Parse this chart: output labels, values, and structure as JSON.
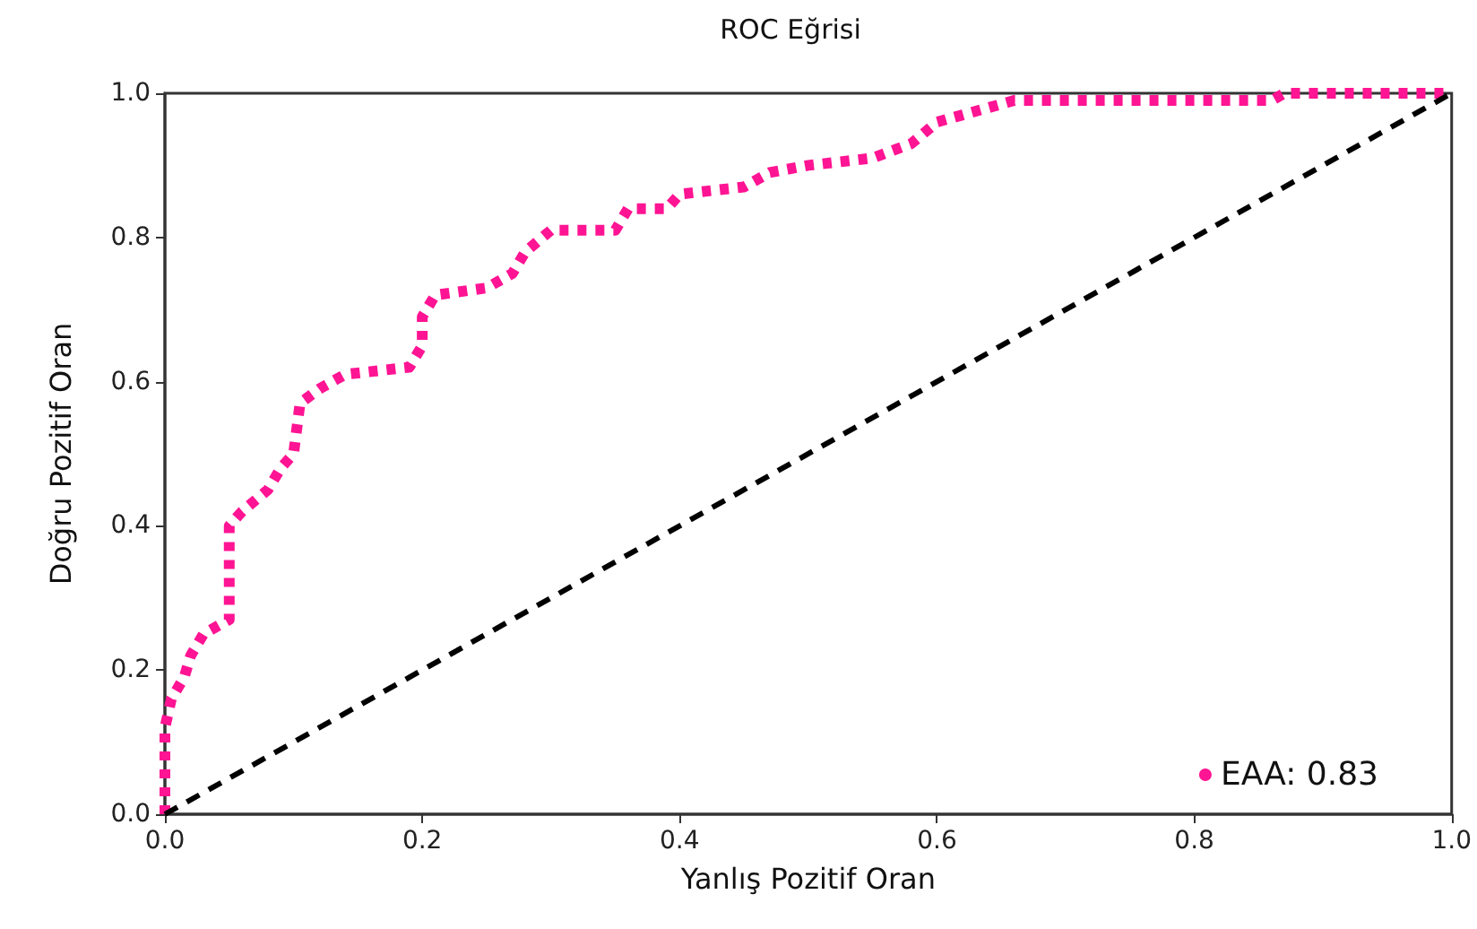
{
  "chart_data": {
    "type": "line",
    "title": "ROC Eğrisi",
    "xlabel": "Yanlış Pozitif Oran",
    "ylabel": "Doğru Pozitif Oran",
    "series": [
      {
        "name": "EAA: 0.83",
        "color": "#ff1493",
        "line_style": "dotted",
        "x": [
          0,
          0,
          0.005,
          0.015,
          0.02,
          0.03,
          0.05,
          0.05,
          0.06,
          0.08,
          0.09,
          0.1,
          0.105,
          0.12,
          0.14,
          0.19,
          0.2,
          0.2,
          0.21,
          0.25,
          0.27,
          0.28,
          0.3,
          0.35,
          0.36,
          0.39,
          0.4,
          0.45,
          0.47,
          0.5,
          0.55,
          0.58,
          0.6,
          0.62,
          0.66,
          0.86,
          0.87,
          1
        ],
        "values": [
          0,
          0.12,
          0.16,
          0.19,
          0.22,
          0.25,
          0.27,
          0.4,
          0.42,
          0.45,
          0.48,
          0.5,
          0.57,
          0.59,
          0.61,
          0.62,
          0.65,
          0.69,
          0.72,
          0.73,
          0.75,
          0.78,
          0.81,
          0.81,
          0.84,
          0.84,
          0.86,
          0.87,
          0.89,
          0.9,
          0.91,
          0.93,
          0.96,
          0.97,
          0.99,
          0.99,
          1,
          1
        ]
      },
      {
        "color": "#000000",
        "line_style": "dashed",
        "x": [
          0,
          1
        ],
        "values": [
          0,
          1
        ]
      }
    ],
    "xlim": [
      0,
      1
    ],
    "ylim": [
      0,
      1
    ],
    "xticks": [
      {
        "value": 0,
        "label": "0.0"
      },
      {
        "value": 0.2,
        "label": "0.2"
      },
      {
        "value": 0.4,
        "label": "0.4"
      },
      {
        "value": 0.6,
        "label": "0.6"
      },
      {
        "value": 0.8,
        "label": "0.8"
      },
      {
        "value": 1,
        "label": "1.0"
      }
    ],
    "yticks": [
      {
        "value": 0,
        "label": "0.0"
      },
      {
        "value": 0.2,
        "label": "0.2"
      },
      {
        "value": 0.4,
        "label": "0.4"
      },
      {
        "value": 0.6,
        "label": "0.6"
      },
      {
        "value": 0.8,
        "label": "0.8"
      },
      {
        "value": 1,
        "label": "1.0"
      }
    ],
    "grid": false,
    "legend": "bottom right",
    "marker": "none"
  }
}
